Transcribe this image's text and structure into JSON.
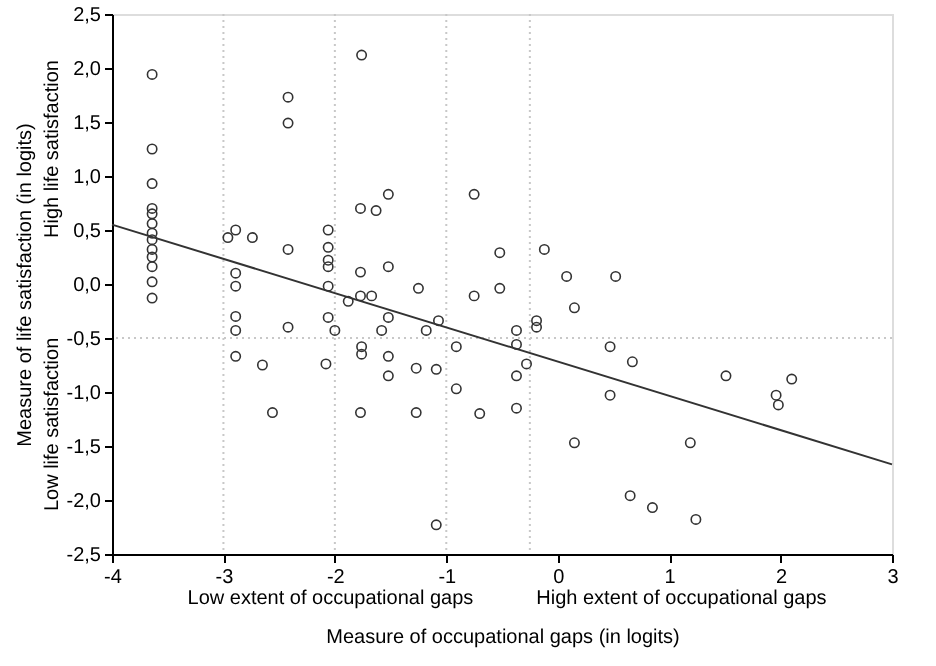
{
  "chart_data": {
    "type": "scatter",
    "xlabel": "Measure of occupational gaps (in logits)",
    "ylabel": "Measure of life satisfaction (in logits)",
    "annotations": [
      "Low extent of occupational gaps",
      "High extent of occupational gaps",
      "Low life satisfaction",
      "High life satisfaction"
    ],
    "xlim": [
      -4,
      3
    ],
    "xticks": [
      -4,
      -3,
      -2,
      -1,
      0,
      1,
      2,
      3
    ],
    "ylim": [
      -2.5,
      2.5
    ],
    "yticks": [
      {
        "value": -2.5,
        "label": "-2,5"
      },
      {
        "value": -2.0,
        "label": "-2,0"
      },
      {
        "value": -1.5,
        "label": "-1,5"
      },
      {
        "value": -1.0,
        "label": "-1,0"
      },
      {
        "value": -0.5,
        "label": "-0,5"
      },
      {
        "value": 0.0,
        "label": "0,0"
      },
      {
        "value": 0.5,
        "label": "0,5"
      },
      {
        "value": 1.0,
        "label": "1,0"
      },
      {
        "value": 1.5,
        "label": "1,5"
      },
      {
        "value": 2.0,
        "label": "2,0"
      },
      {
        "value": 2.5,
        "label": "2,5"
      }
    ],
    "ref_lines": [
      {
        "axis": "x",
        "value": -3,
        "color": "#c8c8c8",
        "line_style": "dotted"
      },
      {
        "axis": "x",
        "value": -2,
        "color": "#c8c8c8",
        "line_style": "dotted"
      },
      {
        "axis": "x",
        "value": -1,
        "color": "#c8c8c8",
        "line_style": "dotted"
      },
      {
        "axis": "x",
        "value": -0.25,
        "color": "#c8c8c8",
        "line_style": "dotted"
      },
      {
        "axis": "y",
        "value": -0.5,
        "color": "#c8c8c8",
        "line_style": "dotted"
      }
    ],
    "series": [
      {
        "type": "scatter",
        "color": "#333333",
        "marker": "circle",
        "x": [
          -3.64,
          -3.64,
          -3.64,
          -3.64,
          -3.64,
          -3.64,
          -3.64,
          -3.64,
          -3.64,
          -3.64,
          -3.64,
          -3.64,
          -3.64,
          -2.96,
          -2.74,
          -2.89,
          -2.89,
          -2.89,
          -2.89,
          -2.89,
          -2.89,
          -2.65,
          -2.56,
          -2.42,
          -2.42,
          -2.42,
          -2.42,
          -2.06,
          -2.06,
          -2.06,
          -2.06,
          -2.06,
          -2.06,
          -2.08,
          -2.0,
          -1.76,
          -1.77,
          -1.63,
          -1.52,
          -1.77,
          -1.52,
          -1.77,
          -1.67,
          -1.88,
          -1.25,
          -1.52,
          -1.76,
          -1.76,
          -1.77,
          -1.58,
          -1.52,
          -1.52,
          -1.27,
          -1.27,
          -1.18,
          -1.09,
          -1.09,
          -0.91,
          -0.91,
          -1.07,
          -0.75,
          -0.52,
          -0.12,
          0.08,
          0.52,
          -0.52,
          -0.75,
          0.15,
          -0.19,
          -0.37,
          -0.37,
          -0.28,
          -0.37,
          -0.37,
          -0.7,
          -0.19,
          0.47,
          0.67,
          0.47,
          0.15,
          1.51,
          2.1,
          1.96,
          1.98,
          1.19,
          0.65,
          0.85,
          1.24
        ],
        "values": [
          1.94,
          1.25,
          0.93,
          0.7,
          0.65,
          0.56,
          0.47,
          0.41,
          0.32,
          0.25,
          0.16,
          0.02,
          -0.13,
          0.43,
          0.43,
          0.1,
          -0.02,
          -0.3,
          -0.43,
          -0.67,
          0.5,
          -0.75,
          -1.19,
          1.73,
          1.49,
          0.32,
          -0.4,
          0.5,
          0.34,
          0.22,
          0.16,
          -0.02,
          -0.31,
          -0.74,
          -0.43,
          2.12,
          0.7,
          0.68,
          0.83,
          0.11,
          0.16,
          -0.11,
          -0.11,
          -0.16,
          -0.04,
          -0.31,
          -0.58,
          -0.65,
          -1.19,
          -0.43,
          -0.67,
          -0.85,
          -0.78,
          -1.19,
          -0.43,
          -0.79,
          -2.23,
          -0.58,
          -0.97,
          -0.34,
          0.83,
          0.29,
          0.32,
          0.07,
          0.07,
          -0.04,
          -0.11,
          -0.22,
          -0.34,
          -0.43,
          -0.56,
          -0.74,
          -0.85,
          -1.15,
          -1.2,
          -0.4,
          -0.58,
          -0.72,
          -1.03,
          -1.47,
          -0.85,
          -0.88,
          -1.03,
          -1.12,
          -1.47,
          -1.96,
          -2.07,
          -2.18
        ]
      },
      {
        "type": "line",
        "color": "#333333",
        "x": [
          -4,
          3
        ],
        "values": [
          0.55,
          -1.67
        ]
      }
    ]
  }
}
